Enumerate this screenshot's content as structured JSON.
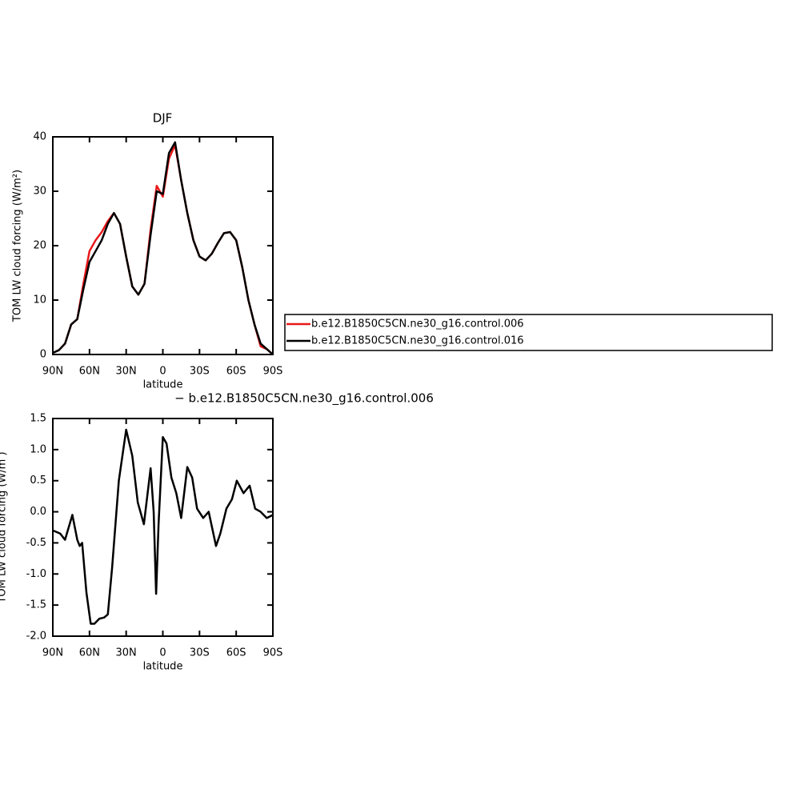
{
  "chart_data": [
    {
      "type": "line",
      "title": "DJF",
      "xlabel": "latitude",
      "ylabel": "TOM LW cloud forcing (W/m²)",
      "x": [
        90,
        85,
        80,
        75,
        70,
        65,
        60,
        55,
        50,
        45,
        40,
        35,
        30,
        25,
        20,
        15,
        10,
        5,
        0,
        -5,
        -10,
        -15,
        -20,
        -25,
        -30,
        -35,
        -40,
        -45,
        -50,
        -55,
        -60,
        -65,
        -70,
        -75,
        -80,
        -85,
        -90
      ],
      "series": [
        {
          "name": "b.e12.B1850C5CN.ne30_g16.control.006",
          "color": "#e8191a",
          "values": [
            0.3,
            0.8,
            2,
            5.5,
            6.5,
            13,
            19,
            21,
            22.5,
            24.5,
            26,
            24,
            18,
            12.5,
            11,
            13,
            23,
            31,
            29,
            36,
            38.5,
            32,
            26,
            21,
            18,
            17.3,
            18.5,
            20.5,
            22.3,
            22.5,
            21,
            16,
            10,
            5.5,
            1.5,
            1,
            0
          ]
        },
        {
          "name": "b.e12.B1850C5CN.ne30_g16.control.016",
          "color": "#000000",
          "values": [
            0.3,
            0.8,
            2,
            5.5,
            6.5,
            12,
            17,
            19,
            21,
            24,
            26,
            24,
            18,
            12.5,
            11,
            13,
            22,
            30,
            29.5,
            37,
            39,
            32,
            26,
            21,
            18,
            17.3,
            18.5,
            20.5,
            22.3,
            22.5,
            21,
            16,
            10,
            5.5,
            2,
            1,
            0
          ]
        }
      ],
      "xlim": [
        90,
        -90
      ],
      "xticks": [
        {
          "value": 90,
          "label": "90N"
        },
        {
          "value": 60,
          "label": "60N"
        },
        {
          "value": 30,
          "label": "30N"
        },
        0,
        {
          "value": -30,
          "label": "30S"
        },
        {
          "value": -60,
          "label": "60S"
        },
        {
          "value": -90,
          "label": "90S"
        }
      ],
      "ylim": [
        0,
        40
      ],
      "yticks": [
        0,
        10,
        20,
        30,
        40
      ]
    },
    {
      "type": "line",
      "title": "− b.e12.B1850C5CN.ne30_g16.control.006",
      "xlabel": "latitude",
      "ylabel": "TOM LW cloud forcing (W/m )",
      "x": [
        90,
        84,
        80,
        74,
        70,
        68,
        66,
        62.5,
        59,
        56,
        52,
        48,
        45,
        41.5,
        36,
        30,
        25,
        20.5,
        15.5,
        10,
        7.5,
        5.5,
        3.5,
        0,
        -3,
        -7,
        -11,
        -15,
        -20,
        -24,
        -28,
        -33,
        -37.5,
        -43.5,
        -47,
        -52,
        -56.5,
        -60.5,
        -66,
        -71,
        -75.5,
        -80,
        -85,
        -90
      ],
      "series": [
        {
          "color": "#000000",
          "values": [
            -0.3,
            -0.35,
            -0.45,
            -0.05,
            -0.45,
            -0.55,
            -0.5,
            -1.3,
            -1.8,
            -1.8,
            -1.72,
            -1.7,
            -1.65,
            -0.9,
            0.5,
            1.32,
            0.9,
            0.15,
            -0.2,
            0.7,
            0,
            -1.32,
            -0.2,
            1.2,
            1.1,
            0.55,
            0.3,
            -0.1,
            0.72,
            0.55,
            0.05,
            -0.1,
            0,
            -0.55,
            -0.35,
            0.05,
            0.2,
            0.5,
            0.3,
            0.42,
            0.05,
            0,
            -0.1,
            -0.05
          ]
        }
      ],
      "xlim": [
        90,
        -90
      ],
      "xticks": [
        {
          "value": 90,
          "label": "90N"
        },
        {
          "value": 60,
          "label": "60N"
        },
        {
          "value": 30,
          "label": "30N"
        },
        0,
        {
          "value": -30,
          "label": "30S"
        },
        {
          "value": -60,
          "label": "60S"
        },
        {
          "value": -90,
          "label": "90S"
        }
      ],
      "ylim": [
        -2,
        1.5
      ],
      "yticks": [
        {
          "value": -2,
          "label": "-2.0"
        },
        -1.5,
        {
          "value": -1,
          "label": "-1.0"
        },
        -0.5,
        {
          "value": 0,
          "label": "0.0"
        },
        0.5,
        {
          "value": 1,
          "label": "1.0"
        },
        1.5
      ]
    }
  ]
}
